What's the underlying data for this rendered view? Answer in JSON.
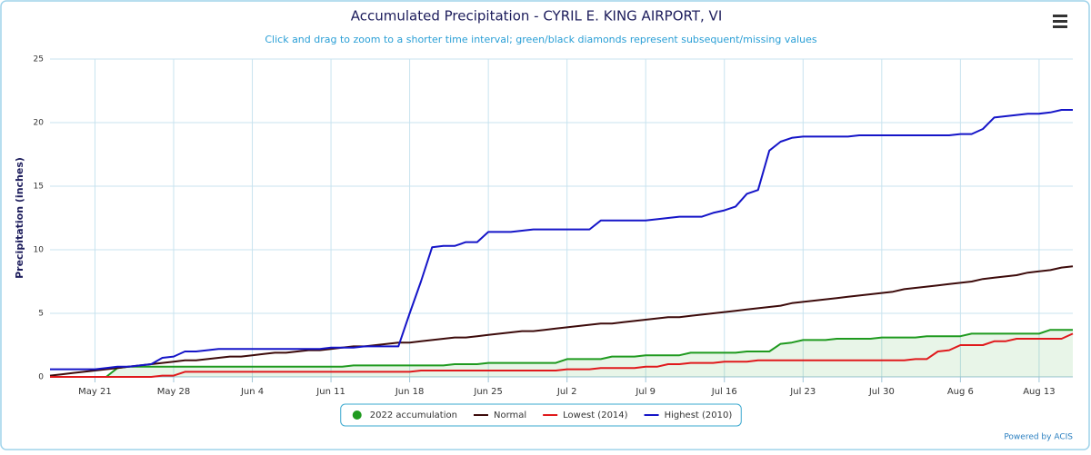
{
  "chart_data": {
    "type": "line",
    "title": "Accumulated Precipitation - CYRIL E. KING AIRPORT, VI",
    "subtitle": "Click and drag to zoom to a shorter time interval; green/black diamonds represent subsequent/missing values",
    "y_label": "Precipitation (inches)",
    "credit": "Powered by ACIS",
    "categories": [
      null,
      null,
      null,
      null,
      "May 21",
      null,
      null,
      null,
      null,
      null,
      null,
      "May 28",
      null,
      null,
      null,
      null,
      null,
      null,
      "Jun 4",
      null,
      null,
      null,
      null,
      null,
      null,
      "Jun 11",
      null,
      null,
      null,
      null,
      null,
      null,
      "Jun 18",
      null,
      null,
      null,
      null,
      null,
      null,
      "Jun 25",
      null,
      null,
      null,
      null,
      null,
      null,
      "Jul 2",
      null,
      null,
      null,
      null,
      null,
      null,
      "Jul 9",
      null,
      null,
      null,
      null,
      null,
      null,
      "Jul 16",
      null,
      null,
      null,
      null,
      null,
      null,
      "Jul 23",
      null,
      null,
      null,
      null,
      null,
      null,
      "Jul 30",
      null,
      null,
      null,
      null,
      null,
      null,
      "Aug 6",
      null,
      null,
      null,
      null,
      null,
      null,
      "Aug 13",
      null,
      null,
      null
    ],
    "ylim": [
      0,
      25
    ],
    "yticks": [
      0,
      5,
      10,
      15,
      20,
      25
    ],
    "grid": true,
    "legend_position": "bottom",
    "series": [
      {
        "name": "2022 accumulation",
        "color": "#1f9a1f",
        "area": true,
        "legend_symbol": "circle",
        "values": [
          0,
          0,
          0,
          0,
          0,
          0,
          0.7,
          0.8,
          0.8,
          0.8,
          0.8,
          0.8,
          0.8,
          0.8,
          0.8,
          0.8,
          0.8,
          0.8,
          0.8,
          0.8,
          0.8,
          0.8,
          0.8,
          0.8,
          0.8,
          0.8,
          0.8,
          0.9,
          0.9,
          0.9,
          0.9,
          0.9,
          0.9,
          0.9,
          0.9,
          0.9,
          1.0,
          1.0,
          1.0,
          1.1,
          1.1,
          1.1,
          1.1,
          1.1,
          1.1,
          1.1,
          1.4,
          1.4,
          1.4,
          1.4,
          1.6,
          1.6,
          1.6,
          1.7,
          1.7,
          1.7,
          1.7,
          1.9,
          1.9,
          1.9,
          1.9,
          1.9,
          2.0,
          2.0,
          2.0,
          2.6,
          2.7,
          2.9,
          2.9,
          2.9,
          3.0,
          3.0,
          3.0,
          3.0,
          3.1,
          3.1,
          3.1,
          3.1,
          3.2,
          3.2,
          3.2,
          3.2,
          3.4,
          3.4,
          3.4,
          3.4,
          3.4,
          3.4,
          3.4,
          3.7,
          3.7,
          3.7
        ]
      },
      {
        "name": "Normal",
        "color": "#3d0b0b",
        "legend_symbol": "line",
        "values": [
          0.1,
          0.2,
          0.3,
          0.4,
          0.5,
          0.6,
          0.7,
          0.8,
          0.9,
          1.0,
          1.1,
          1.2,
          1.3,
          1.3,
          1.4,
          1.5,
          1.6,
          1.6,
          1.7,
          1.8,
          1.9,
          1.9,
          2.0,
          2.1,
          2.1,
          2.2,
          2.3,
          2.4,
          2.4,
          2.5,
          2.6,
          2.7,
          2.7,
          2.8,
          2.9,
          3.0,
          3.1,
          3.1,
          3.2,
          3.3,
          3.4,
          3.5,
          3.6,
          3.6,
          3.7,
          3.8,
          3.9,
          4.0,
          4.1,
          4.2,
          4.2,
          4.3,
          4.4,
          4.5,
          4.6,
          4.7,
          4.7,
          4.8,
          4.9,
          5.0,
          5.1,
          5.2,
          5.3,
          5.4,
          5.5,
          5.6,
          5.8,
          5.9,
          6.0,
          6.1,
          6.2,
          6.3,
          6.4,
          6.5,
          6.6,
          6.7,
          6.9,
          7.0,
          7.1,
          7.2,
          7.3,
          7.4,
          7.5,
          7.7,
          7.8,
          7.9,
          8.0,
          8.2,
          8.3,
          8.4,
          8.6,
          8.7
        ]
      },
      {
        "name": "Lowest (2014)",
        "color": "#e0191c",
        "legend_symbol": "line",
        "values": [
          0,
          0,
          0,
          0,
          0,
          0,
          0,
          0,
          0,
          0,
          0.1,
          0.1,
          0.4,
          0.4,
          0.4,
          0.4,
          0.4,
          0.4,
          0.4,
          0.4,
          0.4,
          0.4,
          0.4,
          0.4,
          0.4,
          0.4,
          0.4,
          0.4,
          0.4,
          0.4,
          0.4,
          0.4,
          0.4,
          0.5,
          0.5,
          0.5,
          0.5,
          0.5,
          0.5,
          0.5,
          0.5,
          0.5,
          0.5,
          0.5,
          0.5,
          0.5,
          0.6,
          0.6,
          0.6,
          0.7,
          0.7,
          0.7,
          0.7,
          0.8,
          0.8,
          1.0,
          1.0,
          1.1,
          1.1,
          1.1,
          1.2,
          1.2,
          1.2,
          1.3,
          1.3,
          1.3,
          1.3,
          1.3,
          1.3,
          1.3,
          1.3,
          1.3,
          1.3,
          1.3,
          1.3,
          1.3,
          1.3,
          1.4,
          1.4,
          2.0,
          2.1,
          2.5,
          2.5,
          2.5,
          2.8,
          2.8,
          3.0,
          3.0,
          3.0,
          3.0,
          3.0,
          3.4
        ]
      },
      {
        "name": "Highest (2010)",
        "color": "#1515c8",
        "legend_symbol": "line",
        "values": [
          0.6,
          0.6,
          0.6,
          0.6,
          0.6,
          0.7,
          0.8,
          0.8,
          0.9,
          1.0,
          1.5,
          1.6,
          2.0,
          2.0,
          2.1,
          2.2,
          2.2,
          2.2,
          2.2,
          2.2,
          2.2,
          2.2,
          2.2,
          2.2,
          2.2,
          2.3,
          2.3,
          2.3,
          2.4,
          2.4,
          2.4,
          2.4,
          5.0,
          7.5,
          10.2,
          10.3,
          10.3,
          10.6,
          10.6,
          11.4,
          11.4,
          11.4,
          11.5,
          11.6,
          11.6,
          11.6,
          11.6,
          11.6,
          11.6,
          12.3,
          12.3,
          12.3,
          12.3,
          12.3,
          12.4,
          12.5,
          12.6,
          12.6,
          12.6,
          12.9,
          13.1,
          13.4,
          14.4,
          14.7,
          17.8,
          18.5,
          18.8,
          18.9,
          18.9,
          18.9,
          18.9,
          18.9,
          19.0,
          19.0,
          19.0,
          19.0,
          19.0,
          19.0,
          19.0,
          19.0,
          19.0,
          19.1,
          19.1,
          19.5,
          20.4,
          20.5,
          20.6,
          20.7,
          20.7,
          20.8,
          21.0,
          21.0
        ]
      }
    ]
  }
}
